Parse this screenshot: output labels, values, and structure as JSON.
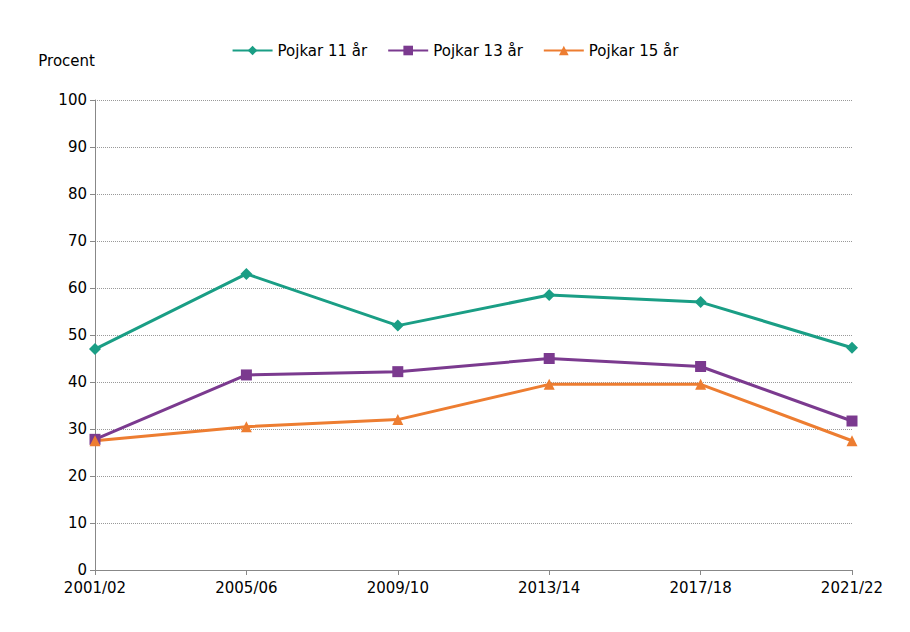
{
  "chart_data": {
    "type": "line",
    "y_label": "Procent",
    "categories": [
      "2001/02",
      "2005/06",
      "2009/10",
      "2013/14",
      "2017/18",
      "2021/22"
    ],
    "series": [
      {
        "name": "Pojkar 11 år",
        "color": "#1a9e85",
        "marker": "diamond",
        "values": [
          47,
          63,
          52,
          58.5,
          57,
          47.3
        ]
      },
      {
        "name": "Pojkar 13 år",
        "color": "#7b3a8f",
        "marker": "square",
        "values": [
          27.8,
          41.5,
          42.2,
          45,
          43.3,
          31.7
        ]
      },
      {
        "name": "Pojkar 15 år",
        "color": "#ed7d31",
        "marker": "triangle",
        "values": [
          27.5,
          30.5,
          32,
          39.5,
          39.5,
          27.5
        ]
      }
    ],
    "ylim": [
      0,
      100
    ],
    "yticks": [
      0,
      10,
      20,
      30,
      40,
      50,
      60,
      70,
      80,
      90,
      100
    ],
    "grid": true,
    "legend": "top"
  }
}
